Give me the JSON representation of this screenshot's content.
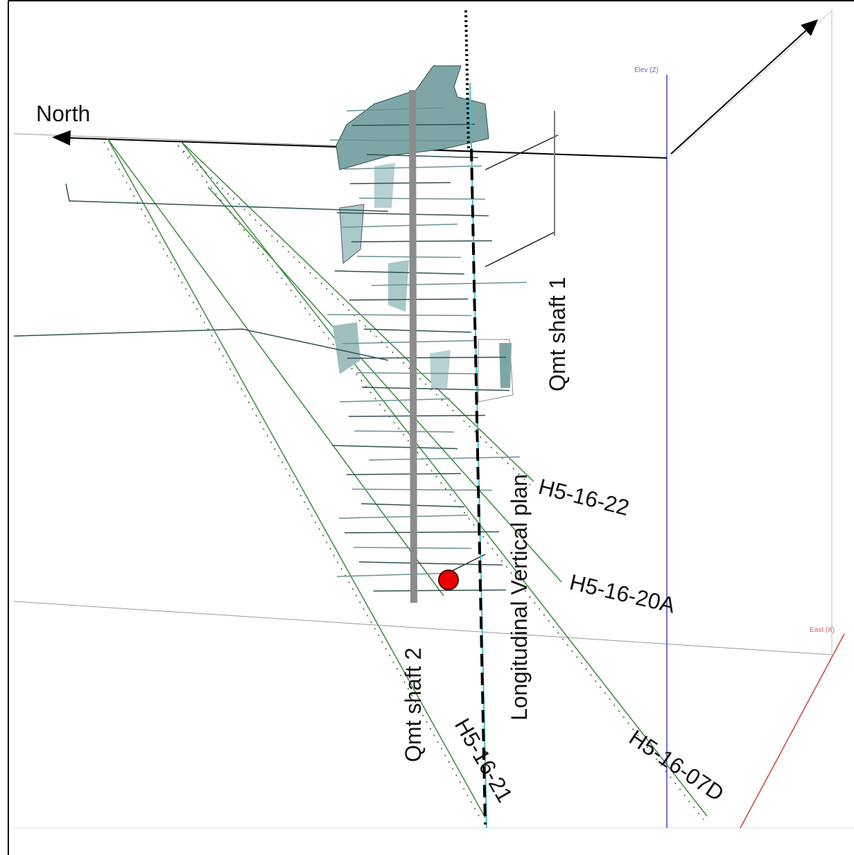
{
  "labels": {
    "north": "North",
    "elev": "Elev (Z)",
    "east": "East (X)",
    "shaft1": "Qmt shaft 1",
    "shaft2": "Qmt shaft 2",
    "plan": "Longitudinal Vertical plan"
  },
  "drillholes": [
    {
      "label": "H5-16-22"
    },
    {
      "label": "H5-16-20A"
    },
    {
      "label": "H5-16-21"
    },
    {
      "label": "H5-16-07D"
    }
  ]
}
